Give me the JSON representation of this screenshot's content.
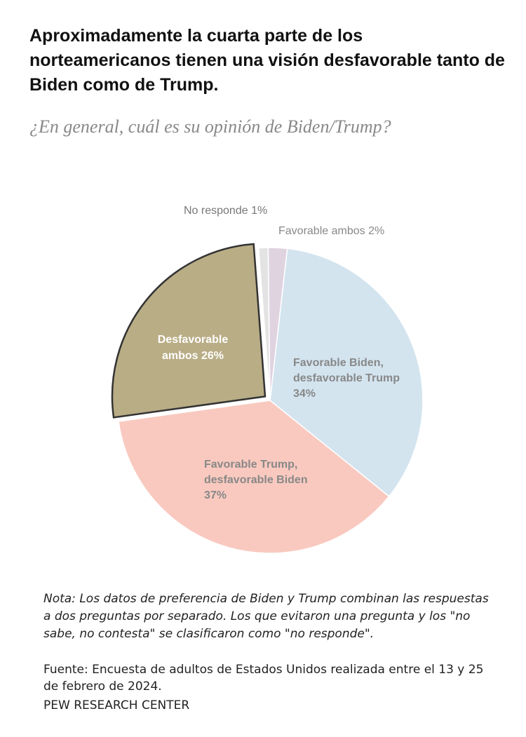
{
  "title": "Aproximadamente la cuarta parte de los norteamericanos tienen una visión desfavorable tanto de Biden como de Trump.",
  "subtitle": "¿En general, cuál es su opinión de Biden/Trump?",
  "chart_data": {
    "type": "pie",
    "title": "¿En general, cuál es su opinión de Biden/Trump?",
    "slices": [
      {
        "label_lines": [
          "Favorable Biden,",
          "desfavorable Trump"
        ],
        "pct_label": "34%",
        "value": 34,
        "color": "#d3e4ef",
        "label_color": "#888888"
      },
      {
        "label_lines": [
          "Favorable Trump,",
          "desfavorable Biden"
        ],
        "pct_label": "37%",
        "value": 37,
        "color": "#f9c9bf",
        "label_color": "#888888"
      },
      {
        "label_lines": [
          "Desfavorable",
          "ambos 26%"
        ],
        "pct_label": "",
        "value": 26,
        "color": "#b9ad86",
        "label_color": "#ffffff",
        "exploded": true
      },
      {
        "label_lines": [
          "No responde 1%"
        ],
        "pct_label": "",
        "value": 1,
        "color": "#e3e3e3",
        "label_color": "#777777"
      },
      {
        "label_lines": [
          "Favorable ambos 2%"
        ],
        "pct_label": "",
        "value": 2,
        "color": "#e0d3e0",
        "label_color": "#888888"
      }
    ]
  },
  "note": "Nota: Los datos de preferencia de Biden y Trump combinan las respuestas a dos preguntas por separado. Los que evitaron una pregunta y los \"no sabe, no contesta\" se clasificaron como \"no responde\".",
  "source": "Fuente: Encuesta de adultos de Estados Unidos realizada entre el 13 y 25 de febrero de 2024.",
  "organization": "PEW RESEARCH CENTER"
}
